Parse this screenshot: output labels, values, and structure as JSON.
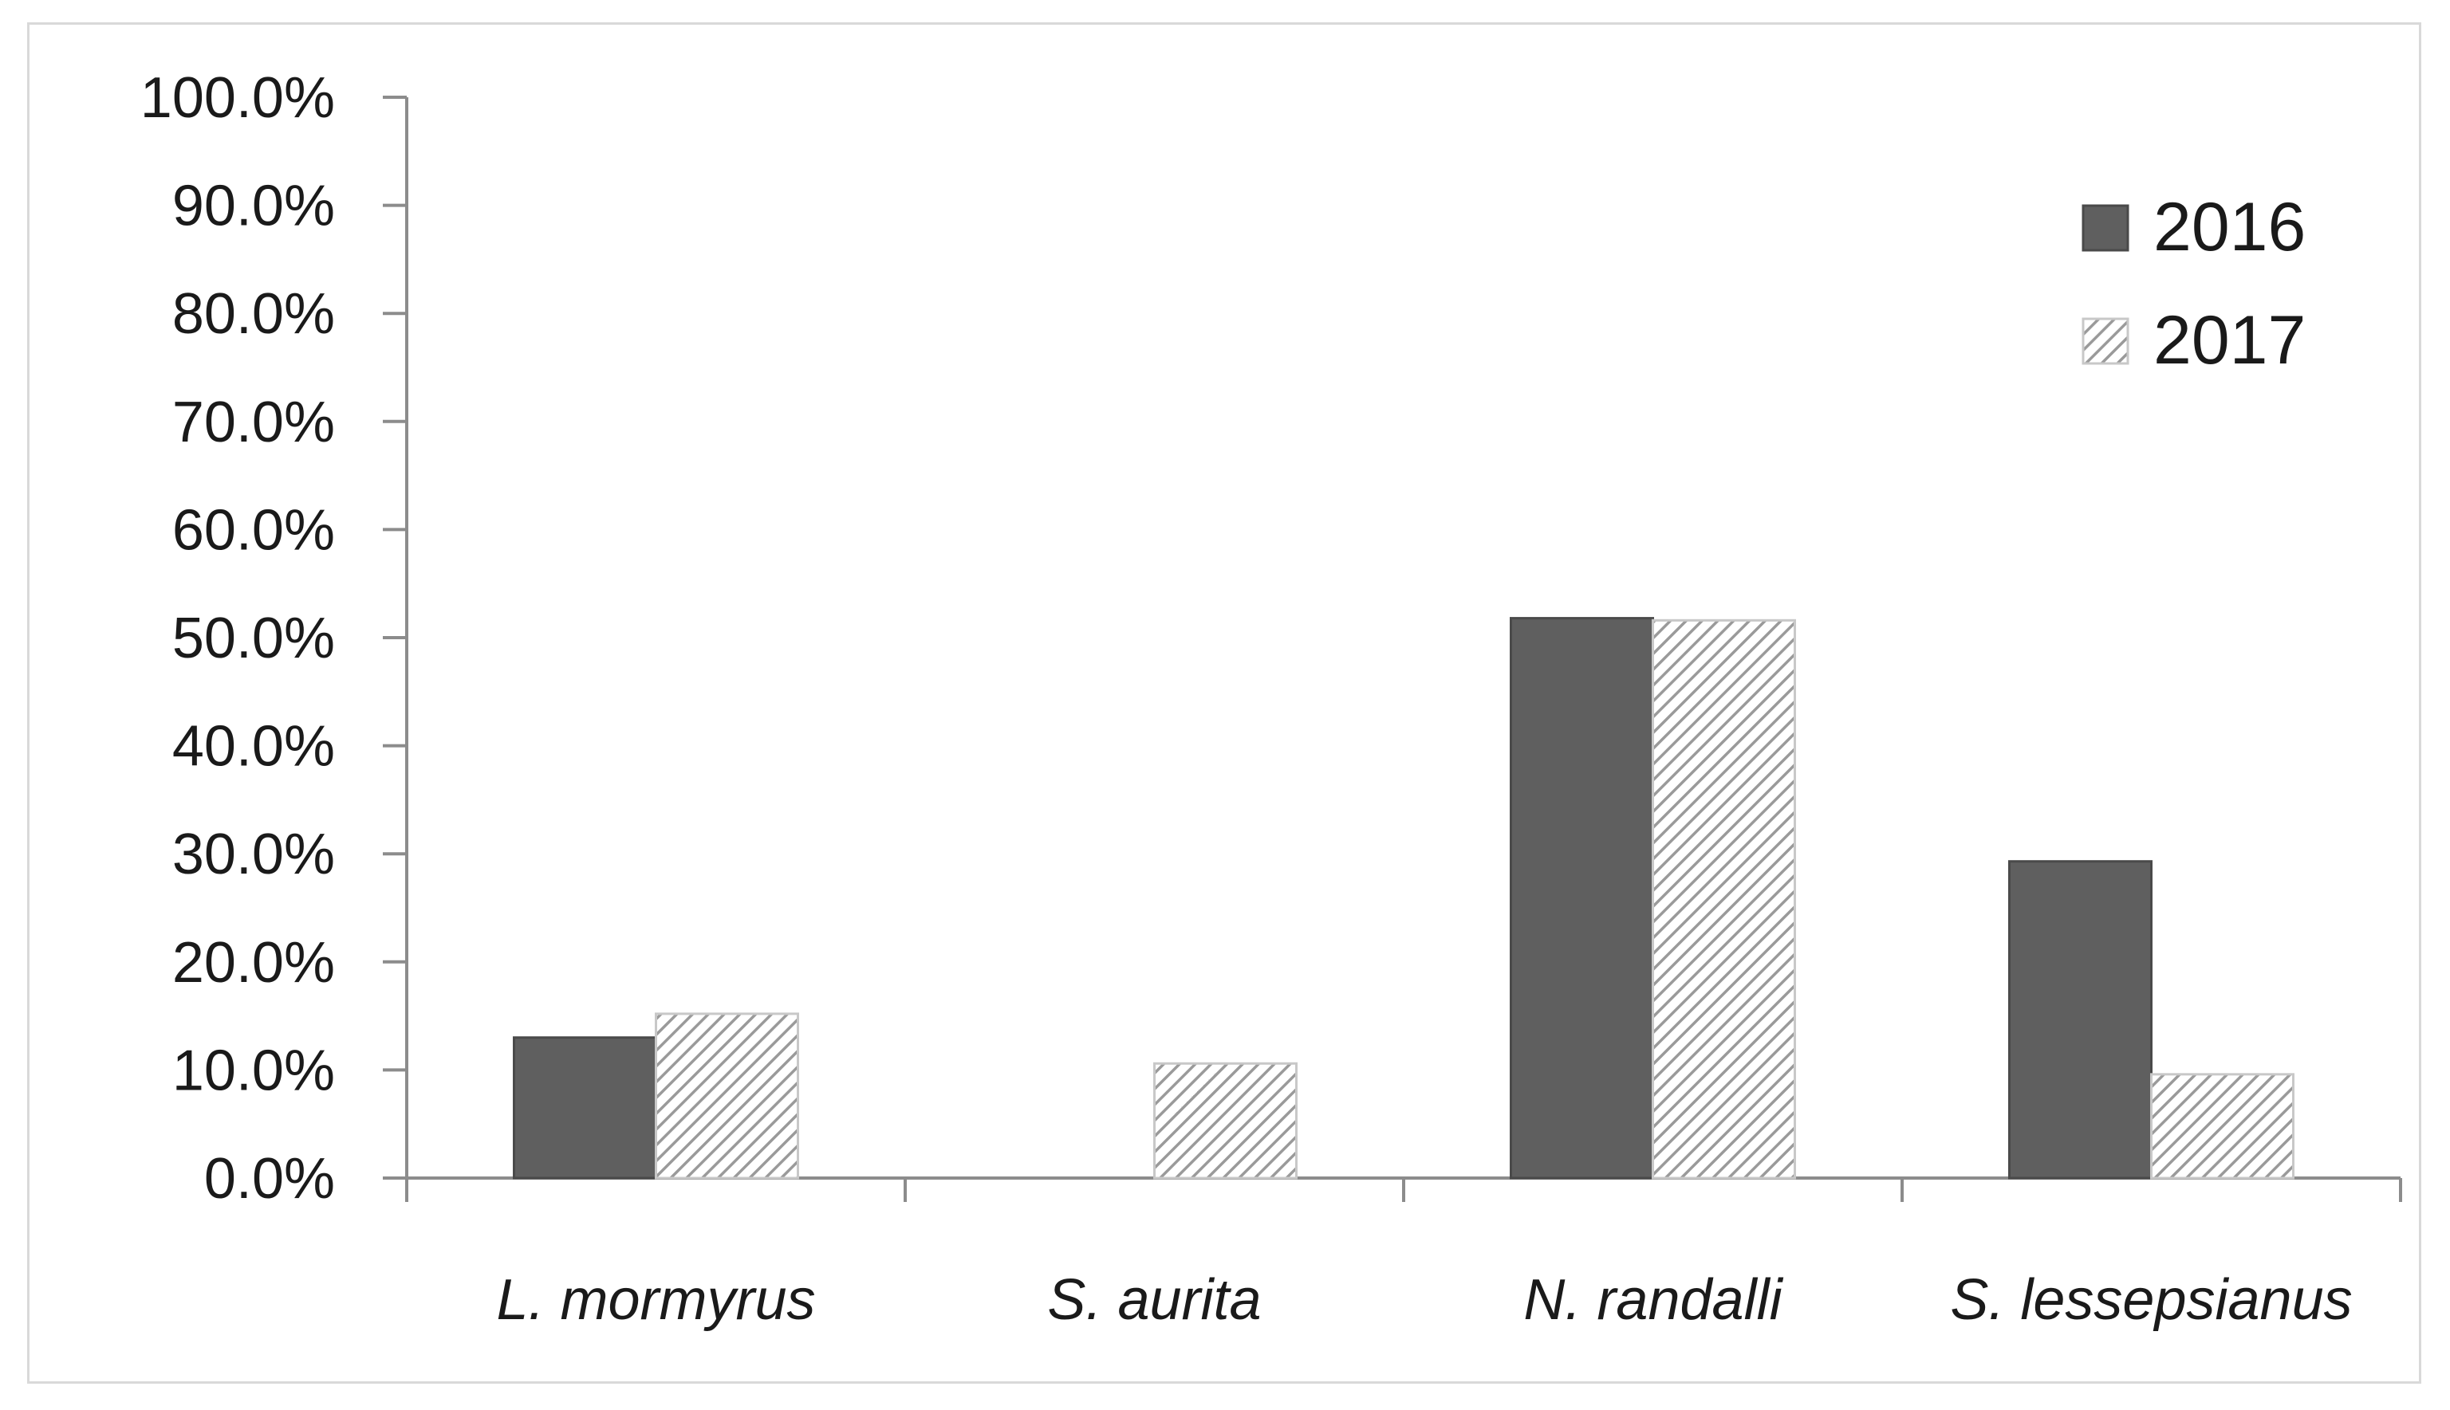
{
  "chart_data": {
    "type": "bar",
    "categories": [
      "L. mormyrus",
      "S. aurita",
      "N. randalli",
      "S. lessepsianus"
    ],
    "series": [
      {
        "name": "2016",
        "values": [
          13.0,
          0.0,
          51.8,
          29.3
        ],
        "color": "#5f5f5f",
        "fill": "solid"
      },
      {
        "name": "2017",
        "values": [
          15.2,
          10.6,
          51.6,
          9.6
        ],
        "color": "#bfbfbf",
        "fill": "hatched"
      }
    ],
    "ylim": [
      0,
      100
    ],
    "yticks": [
      "0.0%",
      "10.0%",
      "20.0%",
      "30.0%",
      "40.0%",
      "50.0%",
      "60.0%",
      "70.0%",
      "80.0%",
      "90.0%",
      "100.0%"
    ],
    "grid": false,
    "legend_position": "top-right",
    "title": "",
    "xlabel": "",
    "ylabel": ""
  }
}
